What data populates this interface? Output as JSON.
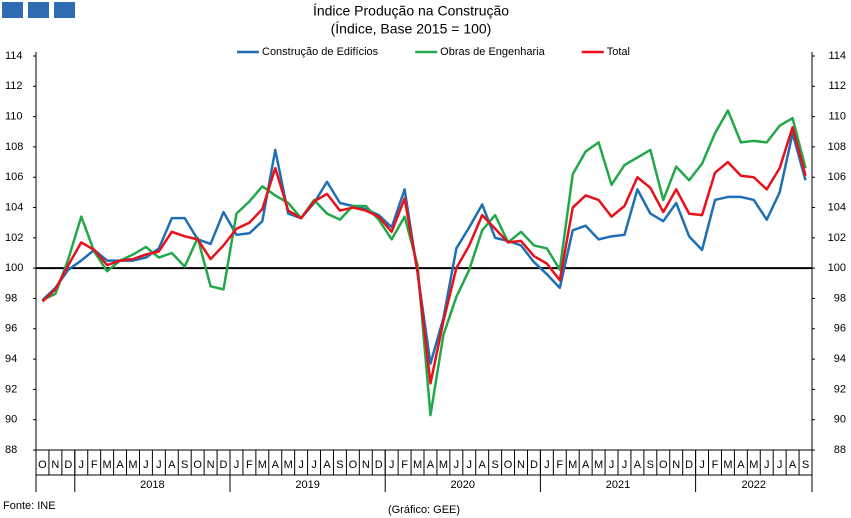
{
  "chart_data": {
    "type": "line",
    "title": "Índice Produção na Construção",
    "subtitle": "(Índice, Base 2015 = 100)",
    "source": "Fonte: INE",
    "credit": "(Gráfico: GEE)",
    "categories": [
      "O",
      "N",
      "D",
      "J",
      "F",
      "M",
      "A",
      "M",
      "J",
      "J",
      "A",
      "S",
      "O",
      "N",
      "D",
      "J",
      "F",
      "M",
      "A",
      "M",
      "J",
      "J",
      "A",
      "S",
      "O",
      "N",
      "D",
      "J",
      "F",
      "M",
      "A",
      "M",
      "J",
      "J",
      "A",
      "S",
      "O",
      "N",
      "D",
      "J",
      "F",
      "M",
      "A",
      "M",
      "J",
      "J",
      "A",
      "S",
      "O",
      "N",
      "D",
      "J",
      "F",
      "M",
      "A",
      "M",
      "J",
      "J",
      "A",
      "S"
    ],
    "years": [
      "2018",
      "2019",
      "2020",
      "2021",
      "2022"
    ],
    "series": [
      {
        "name": "Construção de Edifícios",
        "color": "#1f6fb5",
        "values": [
          97.9,
          98.7,
          99.9,
          100.5,
          101.2,
          100.5,
          100.5,
          100.5,
          100.7,
          101.3,
          103.3,
          103.3,
          101.9,
          101.6,
          103.7,
          102.2,
          102.3,
          103.1,
          107.8,
          103.6,
          103.3,
          104.3,
          105.7,
          104.3,
          104.1,
          103.9,
          103.5,
          102.7,
          105.2,
          99.7,
          93.7,
          96.7,
          101.3,
          102.7,
          104.2,
          102.0,
          101.8,
          101.5,
          100.4,
          99.6,
          98.7,
          102.5,
          102.8,
          101.9,
          102.1,
          102.2,
          105.2,
          103.6,
          103.1,
          104.3,
          102.1,
          101.2,
          104.5,
          104.7,
          104.7,
          104.5,
          103.2,
          105.0,
          108.9,
          105.8
        ]
      },
      {
        "name": "Obras de Engenharia",
        "color": "#22a84a",
        "values": [
          97.9,
          98.3,
          100.6,
          103.4,
          101.1,
          99.8,
          100.5,
          100.9,
          101.4,
          100.7,
          101.0,
          100.1,
          102.0,
          98.8,
          98.6,
          103.6,
          104.4,
          105.4,
          104.8,
          104.3,
          103.3,
          104.5,
          103.6,
          103.2,
          104.1,
          104.1,
          103.2,
          101.9,
          103.4,
          100.2,
          90.3,
          95.6,
          98.1,
          99.9,
          102.5,
          103.5,
          101.7,
          102.4,
          101.5,
          101.3,
          99.9,
          106.2,
          107.7,
          108.3,
          105.5,
          106.8,
          107.3,
          107.8,
          104.5,
          106.7,
          105.8,
          106.9,
          108.9,
          110.4,
          108.3,
          108.4,
          108.3,
          109.4,
          109.9,
          106.6
        ]
      },
      {
        "name": "Total",
        "color": "#e8101a",
        "values": [
          97.8,
          98.6,
          100.2,
          101.7,
          101.2,
          100.2,
          100.5,
          100.6,
          100.9,
          101.1,
          102.4,
          102.1,
          101.9,
          100.6,
          101.5,
          102.6,
          103.0,
          103.9,
          106.6,
          103.8,
          103.3,
          104.4,
          104.9,
          103.8,
          104.0,
          103.8,
          103.4,
          102.4,
          104.6,
          99.8,
          92.4,
          96.5,
          100.0,
          101.5,
          103.5,
          102.6,
          101.7,
          101.8,
          100.8,
          100.3,
          99.2,
          104.0,
          104.8,
          104.5,
          103.4,
          104.1,
          106.0,
          105.3,
          103.7,
          105.2,
          103.6,
          103.5,
          106.3,
          107.0,
          106.1,
          106.0,
          105.2,
          106.6,
          109.3,
          106.1
        ]
      }
    ],
    "reference_line": 100,
    "ylim": [
      88,
      114
    ],
    "yticks": [
      88,
      90,
      92,
      94,
      96,
      98,
      100,
      102,
      104,
      106,
      108,
      110,
      112,
      114
    ],
    "y2lim": [
      88,
      114
    ],
    "y2ticks": [
      88,
      90,
      92,
      94,
      96,
      98,
      100,
      102,
      104,
      106,
      108,
      110,
      112,
      114
    ],
    "legend": "top"
  }
}
